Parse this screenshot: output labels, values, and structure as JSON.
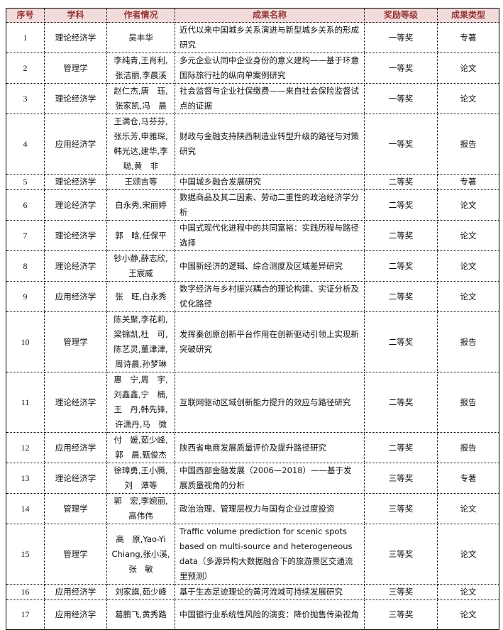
{
  "headers": [
    "序号",
    "学科",
    "作者情况",
    "成果名称",
    "奖励等级",
    "成果类型"
  ],
  "rows": [
    {
      "no": "1",
      "subject": "理论经济学",
      "authors": "吴丰华",
      "title": "近代以来中国城乡关系演进与新型城乡关系的形成研究",
      "award": "一等奖",
      "type": "专著"
    },
    {
      "no": "2",
      "subject": "管理学",
      "authors": "李纯青,王肖利,\n张洁丽,李晨溪",
      "title": "多元企业认同中企业身份的意义建构——基于环意国际旅行社的纵向单案例研究",
      "award": "一等奖",
      "type": "论文"
    },
    {
      "no": "3",
      "subject": "理论经济学",
      "authors": "赵仁杰,唐　珏,\n张家凯,冯　晨",
      "title": "社会监督与企业社保缴费——来自社会保险监督试点的证据",
      "award": "一等奖",
      "type": "论文"
    },
    {
      "no": "4",
      "subject": "应用经济学",
      "authors": "王满仓,马芬芬,\n张乐芳,申雅琛,\n韩光达,建华,李\n聪,黄　非",
      "title": "财政与金融支持陕西制造业转型升级的路径与对策研究",
      "award": "一等奖",
      "type": "报告"
    },
    {
      "no": "5",
      "subject": "理论经济学",
      "authors": "王颂吉等",
      "title": "中国城乡融合发展研究",
      "award": "二等奖",
      "type": "专著"
    },
    {
      "no": "6",
      "subject": "理论经济学",
      "authors": "白永秀,宋丽婷",
      "title": "数据商品及其二因素、劳动二重性的政治经济学分析",
      "award": "二等奖",
      "type": "论文"
    },
    {
      "no": "7",
      "subject": "理论经济学",
      "authors": "郭　晗,任保平",
      "title": "中国式现代化进程中的共同富裕：实践历程与路径选择",
      "award": "二等奖",
      "type": "论文"
    },
    {
      "no": "8",
      "subject": "理论经济学",
      "authors": "钞小静,薛志欣,\n王宸威",
      "title": "中国新经济的逻辑、综合测度及区域差异研究",
      "award": "二等奖",
      "type": "论文"
    },
    {
      "no": "9",
      "subject": "应用经济学",
      "authors": "张　旺,白永秀",
      "title": "数字经济与乡村振兴耦合的理论构建、实证分析及优化路径",
      "award": "二等奖",
      "type": "论文"
    },
    {
      "no": "10",
      "subject": "管理学",
      "authors": "陈关聚,李花莉,\n梁锦凯,杜　可,\n陈艺灵,董津津,\n周诗晨,孙梦琳",
      "title": "发挥秦创原创新平台作用在创新驱动引领上实现新突破研究",
      "award": "二等奖",
      "type": "报告"
    },
    {
      "no": "11",
      "subject": "理论经济学",
      "authors": "惠　宁,周　宇,\n刘鑫鑫,宁　楠,\n王　丹,韩先锋,\n许潇丹,马　微",
      "title": "互联网驱动区域创新能力提升的效应与路径研究",
      "award": "二等奖",
      "type": "报告"
    },
    {
      "no": "12",
      "subject": "应用经济学",
      "authors": "付　媛,茹少峰,\n郭　晨,甄俊杰",
      "title": "陕西省电商发展质量评价及提升路径研究",
      "award": "二等奖",
      "type": "报告"
    },
    {
      "no": "13",
      "subject": "理论经济学",
      "authors": "徐璋勇,王小腾,\n刘　潭等",
      "title": "中国西部金融发展（2006—2018）——基于发展质量视角的分析",
      "award": "三等奖",
      "type": "专著"
    },
    {
      "no": "14",
      "subject": "管理学",
      "authors": "郭　宏,李婉丽,\n高伟伟",
      "title": "政治治理、管理层权力与国有企业过度投资",
      "award": "三等奖",
      "type": "论文"
    },
    {
      "no": "15",
      "subject": "管理学",
      "authors": "高　原,Yao-Yi\nChiang,张小溪,\n张　敏",
      "title": "Traffic volume prediction for scenic spots based on multi-source and heterogeneous data（多源异构大数据融合下的旅游景区交通流里预测）",
      "award": "三等奖",
      "type": "论文"
    },
    {
      "no": "16",
      "subject": "应用经济学",
      "authors": "刘家旗,茹少峰",
      "title": "基于生态足迹理论的黄河流域可持续发展研究",
      "award": "三等奖",
      "type": "论文"
    },
    {
      "no": "17",
      "subject": "应用经济学",
      "authors": "葛鹏飞,黄秀路",
      "title": "中国银行业系统性风险的演变：降价抛售传染视角",
      "award": "三等奖",
      "type": "论文"
    }
  ],
  "colors": {
    "header_bg": "#f2dbdb",
    "header_text": "#943634"
  }
}
